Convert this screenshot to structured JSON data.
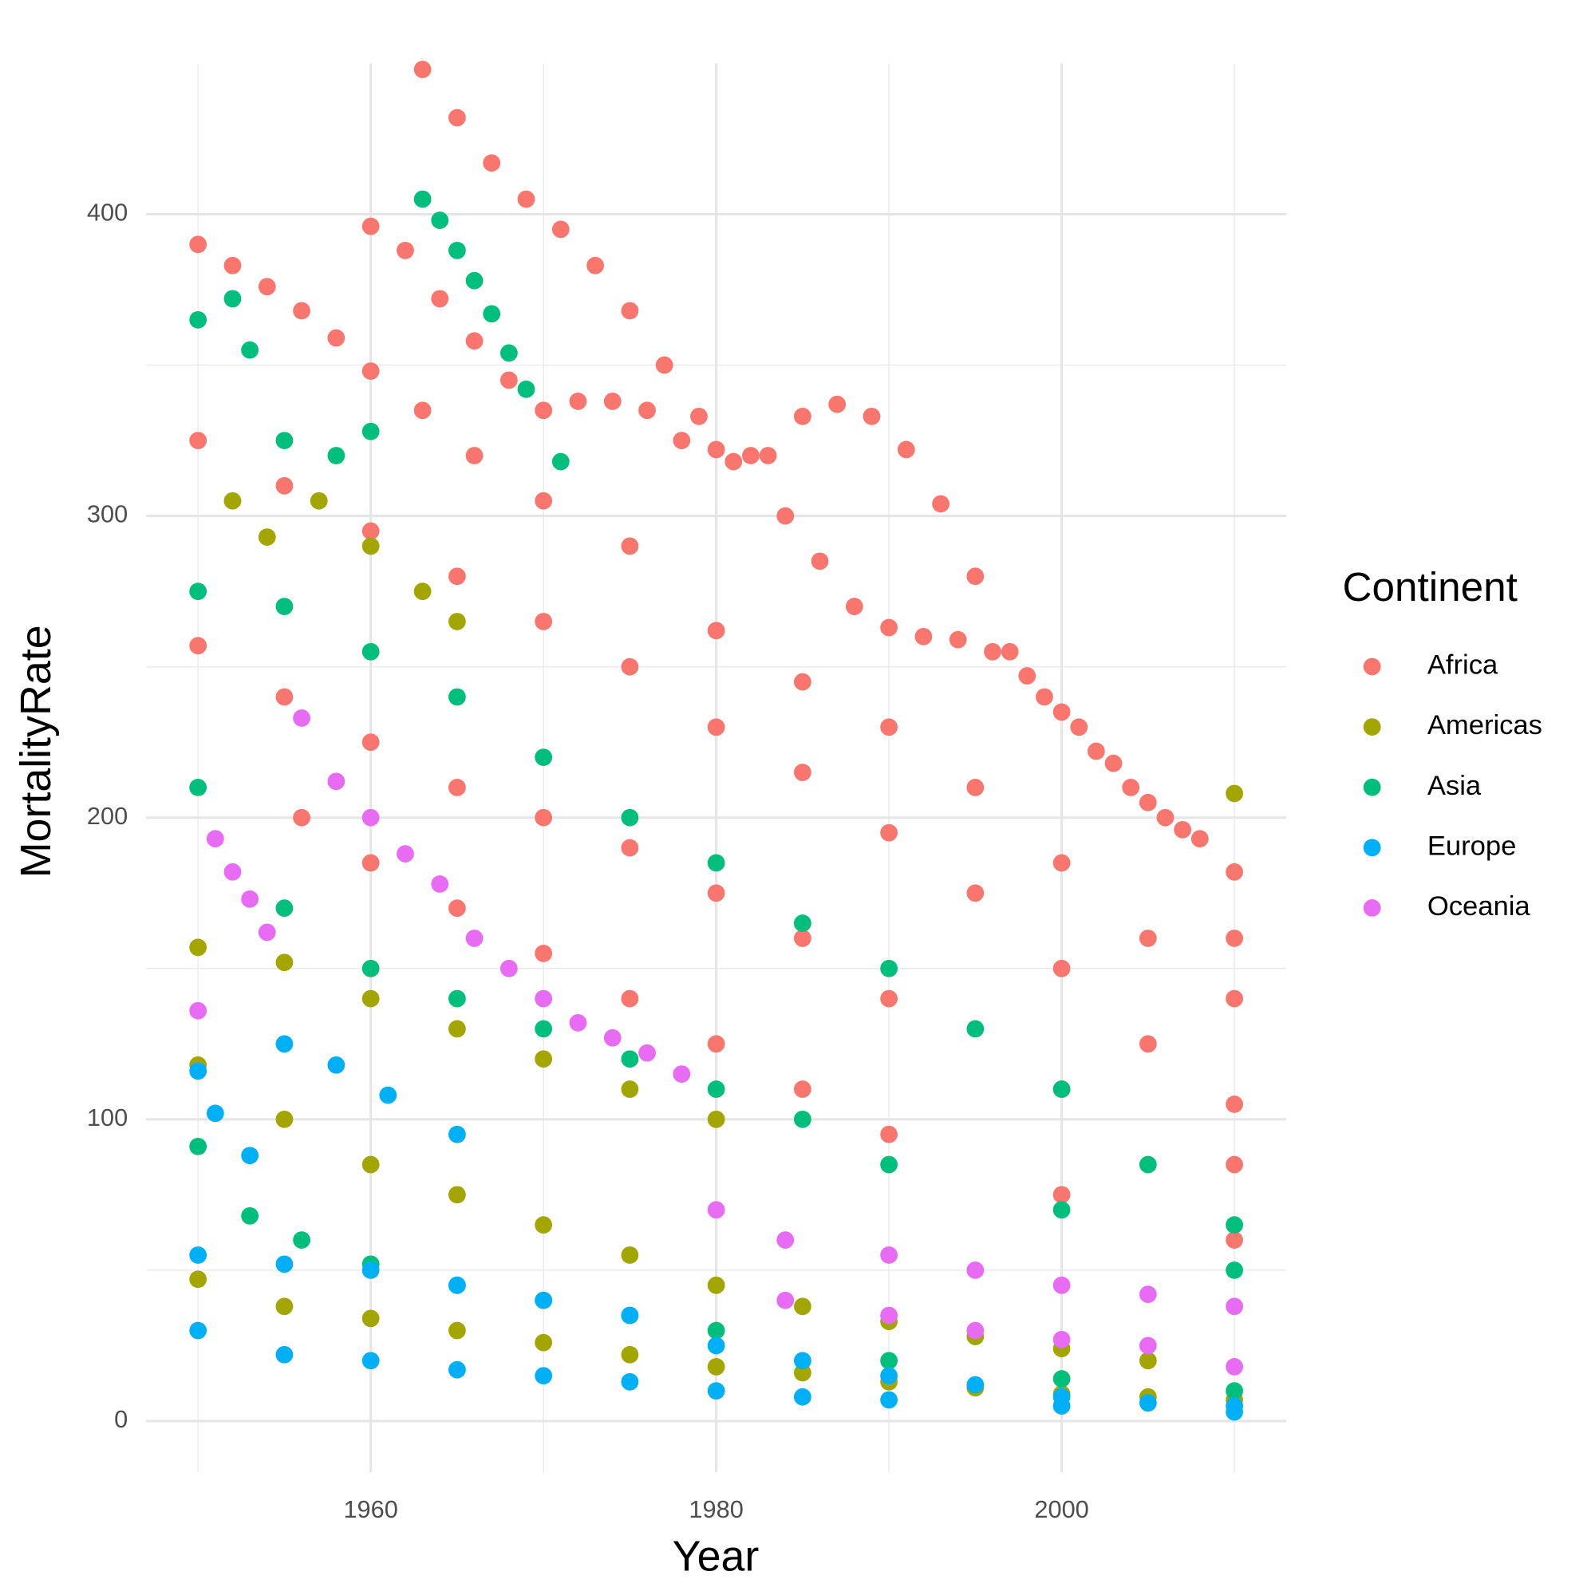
{
  "chart_data": {
    "type": "scatter",
    "x_label": "Year",
    "y_label": "MortalityRate",
    "xlim": [
      1947,
      2013
    ],
    "xticks": [
      1960,
      1980,
      2000
    ],
    "xminor": [
      1950,
      1970,
      1990,
      2010
    ],
    "ylim": [
      -17,
      450
    ],
    "yticks": [
      0,
      100,
      200,
      300,
      400
    ],
    "yminor": [
      50,
      150,
      250,
      350
    ],
    "grid": true,
    "legend": "right",
    "legend_title": "Continent",
    "series": [
      {
        "name": "Africa",
        "color": "#F8766D",
        "x": [
          1963,
          1965,
          1967,
          1969,
          1971,
          1973,
          1975,
          1977,
          1979,
          1981,
          1983,
          1985,
          1987,
          1989,
          1991,
          1993,
          1995,
          1997,
          1999,
          2001,
          2003,
          2005,
          2007,
          2010,
          1950,
          1952,
          1954,
          1956,
          1958,
          1960,
          1963,
          1966,
          1970,
          1975,
          1980,
          1985,
          1990,
          1995,
          2000,
          2005,
          2010,
          1950,
          1955,
          1960,
          1965,
          1970,
          1975,
          1980,
          1985,
          1990,
          1995,
          2000,
          2005,
          2010,
          1950,
          1955,
          1960,
          1965,
          1970,
          1975,
          1980,
          1985,
          1990,
          2000,
          2010,
          1956,
          1960,
          1965,
          1970,
          1975,
          1980,
          1985,
          1990,
          2000,
          2010,
          1960,
          1962,
          1964,
          1966,
          1968,
          1970,
          1972,
          1974,
          1976,
          1978,
          1980,
          1982,
          1984,
          1986,
          1988,
          1990,
          1992,
          1994,
          1996,
          1998,
          2000,
          2002,
          2004,
          2006,
          2008,
          2010
        ],
        "y": [
          448,
          432,
          417,
          405,
          395,
          383,
          368,
          350,
          333,
          318,
          320,
          333,
          337,
          333,
          322,
          304,
          280,
          255,
          240,
          230,
          218,
          205,
          196,
          182,
          390,
          383,
          376,
          368,
          359,
          348,
          335,
          320,
          305,
          290,
          262,
          245,
          230,
          210,
          185,
          160,
          140,
          325,
          310,
          295,
          280,
          265,
          250,
          230,
          215,
          195,
          175,
          150,
          125,
          105,
          257,
          240,
          225,
          210,
          200,
          190,
          175,
          160,
          140,
          110,
          85,
          200,
          185,
          170,
          155,
          140,
          125,
          110,
          95,
          75,
          60,
          396,
          388,
          372,
          358,
          345,
          335,
          338,
          338,
          335,
          325,
          322,
          320,
          300,
          285,
          270,
          263,
          260,
          259,
          255,
          247,
          235,
          222,
          210,
          200,
          193,
          160
        ]
      },
      {
        "name": "Americas",
        "color": "#A3A500",
        "x": [
          1950,
          1955,
          1960,
          1965,
          1970,
          1975,
          1980,
          1952,
          1954,
          1957,
          1960,
          1963,
          1965,
          1950,
          1955,
          1960,
          1965,
          1970,
          1975,
          1980,
          1985,
          1990,
          1995,
          2000,
          2005,
          2010,
          1950,
          1955,
          1960,
          1965,
          1970,
          1975,
          1980,
          1985,
          1990,
          1995,
          2000,
          2005,
          2010
        ],
        "y": [
          157,
          152,
          140,
          130,
          120,
          110,
          100,
          305,
          293,
          305,
          290,
          275,
          265,
          47,
          38,
          34,
          30,
          26,
          22,
          18,
          16,
          13,
          11,
          9,
          8,
          7,
          118,
          100,
          85,
          75,
          65,
          55,
          45,
          38,
          33,
          28,
          24,
          20,
          208
        ]
      },
      {
        "name": "Asia",
        "color": "#00BF7D",
        "x": [
          1950,
          1952,
          1953,
          1955,
          1958,
          1960,
          1963,
          1964,
          1965,
          1966,
          1967,
          1968,
          1969,
          1971,
          1950,
          1955,
          1960,
          1965,
          1970,
          1975,
          1980,
          1985,
          1990,
          1995,
          2000,
          2005,
          2010,
          1950,
          1955,
          1960,
          1965,
          1970,
          1975,
          1980,
          1985,
          1990,
          2000,
          2010,
          1950,
          1953,
          1956,
          1960,
          1965,
          1970,
          1975,
          1980,
          1990,
          2000,
          2010
        ],
        "y": [
          365,
          372,
          355,
          325,
          320,
          328,
          405,
          398,
          388,
          378,
          367,
          354,
          342,
          318,
          275,
          270,
          255,
          240,
          220,
          200,
          185,
          165,
          150,
          130,
          110,
          85,
          65,
          210,
          170,
          150,
          140,
          130,
          120,
          110,
          100,
          85,
          70,
          50,
          91,
          68,
          60,
          52,
          45,
          40,
          35,
          30,
          20,
          14,
          10
        ]
      },
      {
        "name": "Europe",
        "color": "#00B0F6",
        "x": [
          1950,
          1951,
          1953,
          1955,
          1958,
          1961,
          1965,
          1950,
          1955,
          1960,
          1965,
          1970,
          1975,
          1980,
          1985,
          1990,
          1995,
          2000,
          2005,
          2010,
          1950,
          1955,
          1960,
          1965,
          1970,
          1975,
          1980,
          1985,
          1990,
          2000,
          2010
        ],
        "y": [
          116,
          102,
          88,
          125,
          118,
          108,
          95,
          55,
          52,
          50,
          45,
          40,
          35,
          25,
          20,
          15,
          12,
          8,
          6,
          5,
          30,
          22,
          20,
          17,
          15,
          13,
          10,
          8,
          7,
          5,
          3
        ]
      },
      {
        "name": "Oceania",
        "color": "#E76BF3",
        "x": [
          1950,
          1951,
          1952,
          1953,
          1954,
          1956,
          1958,
          1960,
          1962,
          1964,
          1966,
          1968,
          1970,
          1972,
          1974,
          1976,
          1978,
          1980,
          1984,
          1990,
          1995,
          2000,
          2005,
          2010,
          1984,
          1990,
          1995,
          2000,
          2005,
          2010
        ],
        "y": [
          136,
          193,
          182,
          173,
          162,
          233,
          212,
          200,
          188,
          178,
          160,
          150,
          140,
          132,
          127,
          122,
          115,
          70,
          60,
          55,
          50,
          45,
          42,
          38,
          40,
          35,
          30,
          27,
          25,
          18
        ]
      }
    ]
  }
}
